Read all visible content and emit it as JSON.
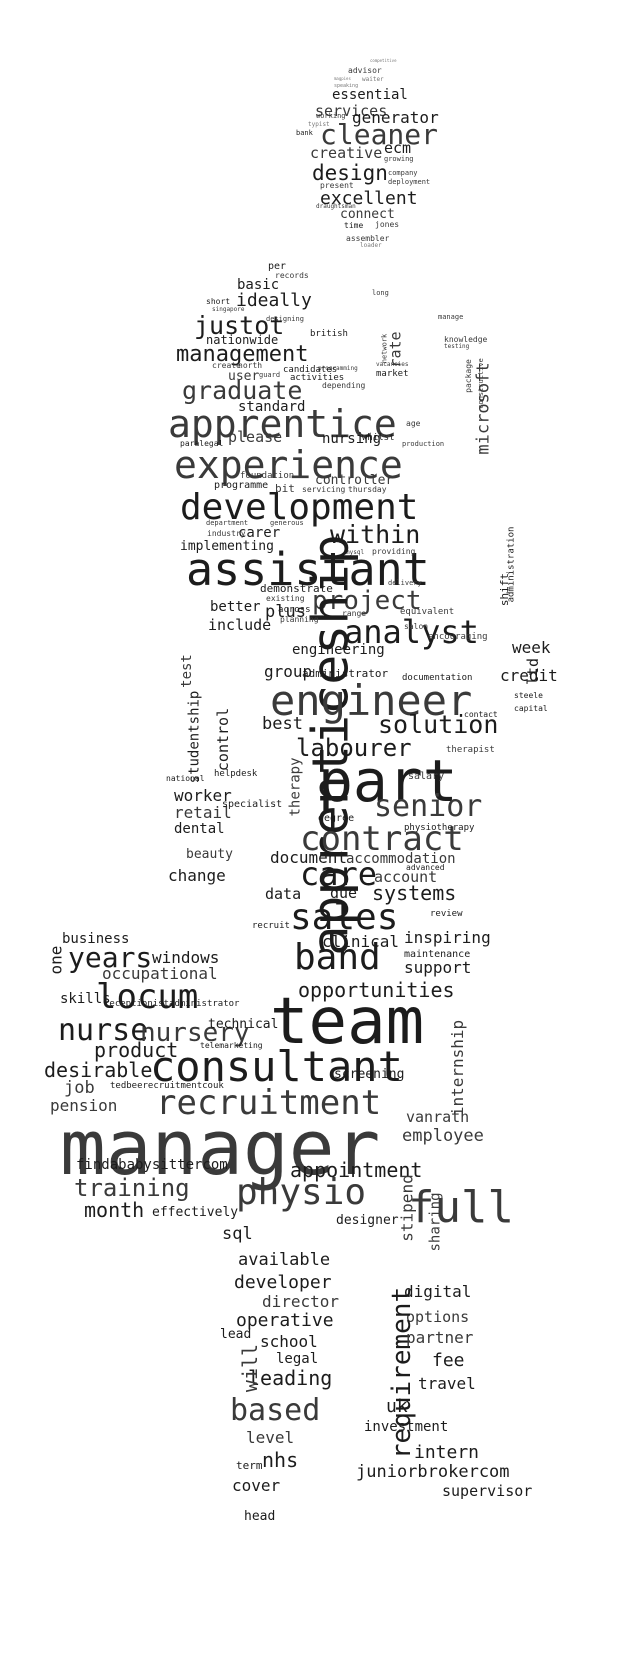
{
  "image": {
    "description_type": "word-cloud",
    "colors": {
      "background": "#ffffff",
      "ink_dark": "#1c1c1c",
      "ink_mid": "#3a3a3a",
      "ink_light": "#7a7a7a"
    }
  },
  "words": {
    "competitive": "competitive",
    "advisor": "advisor",
    "magpies": "magpies",
    "waiter": "waiter",
    "speaking": "speaking",
    "essential": "essential",
    "services": "services",
    "generator": "generator",
    "typist": "typist",
    "working": "working",
    "cleaner": "cleaner",
    "bank": "bank",
    "ecm": "ecm",
    "creative": "creative",
    "growing": "growing",
    "design": "design",
    "company": "company",
    "present": "present",
    "deployment": "deployment",
    "excellent": "excellent",
    "draughtsman": "draughtsman",
    "connect": "connect",
    "time": "time",
    "jones": "jones",
    "assembler": "assembler",
    "loader": "loader",
    "per": "per",
    "records": "records",
    "basic": "basic",
    "ideally": "ideally",
    "singapore": "singapore",
    "short": "short",
    "designing": "designing",
    "long": "long",
    "justot": "justot",
    "nationwide": "nationwide",
    "british": "british",
    "management": "management",
    "manage": "manage",
    "knowledge": "knowledge",
    "testing": "testing",
    "create": "create",
    "north": "north",
    "programming": "programming",
    "network": "network",
    "rate": "rate",
    "user": "user",
    "guard": "guard",
    "candidates": "candidates",
    "activities": "activities",
    "market": "market",
    "vacancies": "vacancies",
    "graduate": "graduate",
    "depending": "depending",
    "standard": "standard",
    "microsoft": "microsoft",
    "package": "package",
    "constructive": "constructive",
    "apprentice": "apprentice",
    "age": "age",
    "please": "please",
    "nursing": "nursing",
    "whilst": "whilst",
    "production": "production",
    "paralegal": "paralegal",
    "experience": "experience",
    "controller": "controller",
    "programme": "programme",
    "bit": "bit",
    "servicing": "servicing",
    "thursday": "thursday",
    "foundation": "foundation",
    "development": "development",
    "within": "within",
    "carer": "carer",
    "implementing": "implementing",
    "industry": "industry",
    "department": "department",
    "generous": "generous",
    "assistant": "assistant",
    "demonstrate": "demonstrate",
    "mysql": "mysql",
    "providing": "providing",
    "administration": "administration",
    "project": "project",
    "plus": "plus",
    "better": "better",
    "apprenticeship": "apprenticeship",
    "existing": "existing",
    "across": "across",
    "planning": "planning",
    "delivery": "delivery",
    "range": "range",
    "equivalent": "equivalent",
    "analyst": "analyst",
    "include": "include",
    "test": "test",
    "engineering": "engineering",
    "week": "week",
    "ltd": "ltd",
    "shift": "shift",
    "encouraging": "encouraging",
    "salon": "salon",
    "credit": "credit",
    "group": "group",
    "administrator": "administrator",
    "documentation": "documentation",
    "studentship": "studentship",
    "engineer": "engineer",
    "steele": "steele",
    "capital": "capital",
    "contact": "contact",
    "best": "best",
    "solution": "solution",
    "control": "control",
    "labourer": "labourer",
    "therapist": "therapist",
    "national": "national",
    "helpdesk": "helpdesk",
    "therapy": "therapy",
    "part": "part",
    "worker": "worker",
    "salary": "salary",
    "retail": "retail",
    "specialist": "specialist",
    "senior": "senior",
    "dental": "dental",
    "degree": "degree",
    "contract": "contract",
    "physiotherapy": "physiotherapy",
    "beauty": "beauty",
    "document": "document",
    "accommodation": "accommodation",
    "change": "change",
    "care": "care",
    "account": "account",
    "advanced": "advanced",
    "data": "data",
    "due": "due",
    "systems": "systems",
    "sales": "sales",
    "review": "review",
    "business": "business",
    "band": "band",
    "clinical": "clinical",
    "inspiring": "inspiring",
    "years": "years",
    "windows": "windows",
    "maintenance": "maintenance",
    "support": "support",
    "occupational": "occupational",
    "locum": "locum",
    "opportunities": "opportunities",
    "skills": "skills",
    "team": "team",
    "nurse": "nurse",
    "nursery": "nursery",
    "technical": "technical",
    "internship": "internship",
    "product": "product",
    "consultant": "consultant",
    "desirable": "desirable",
    "screening": "screening",
    "job": "job",
    "recruitment": "recruitment",
    "pension": "pension",
    "manager": "manager",
    "vanrath": "vanrath",
    "employee": "employee",
    "training": "training",
    "appointment": "appointment",
    "physio": "physio",
    "month": "month",
    "effectively": "effectively",
    "full": "full",
    "stipend": "stipend",
    "sharing": "sharing",
    "designer": "designer",
    "sql": "sql",
    "available": "available",
    "developer": "developer",
    "director": "director",
    "digital": "digital",
    "operative": "operative",
    "options": "options",
    "requirement": "requirement",
    "partner": "partner",
    "school": "school",
    "legal": "legal",
    "leading": "leading",
    "fee": "fee",
    "travel": "travel",
    "based": "based",
    "uk": "uk",
    "investment": "investment",
    "level": "level",
    "nhs": "nhs",
    "intern": "intern",
    "juniorbrokercom": "juniorbrokercom",
    "cover": "cover",
    "supervisor": "supervisor",
    "head": "head",
    "findababysittercom": "findababysittercom",
    "tedbeerecruitmentcouk": "tedbeerecruitmentcouk",
    "receptionistadministrator": "receptionistadministrator",
    "telemarketing": "telemarketing",
    "recruit": "recruit",
    "term": "term",
    "lead": "lead",
    "will": "will",
    "one": "one"
  }
}
